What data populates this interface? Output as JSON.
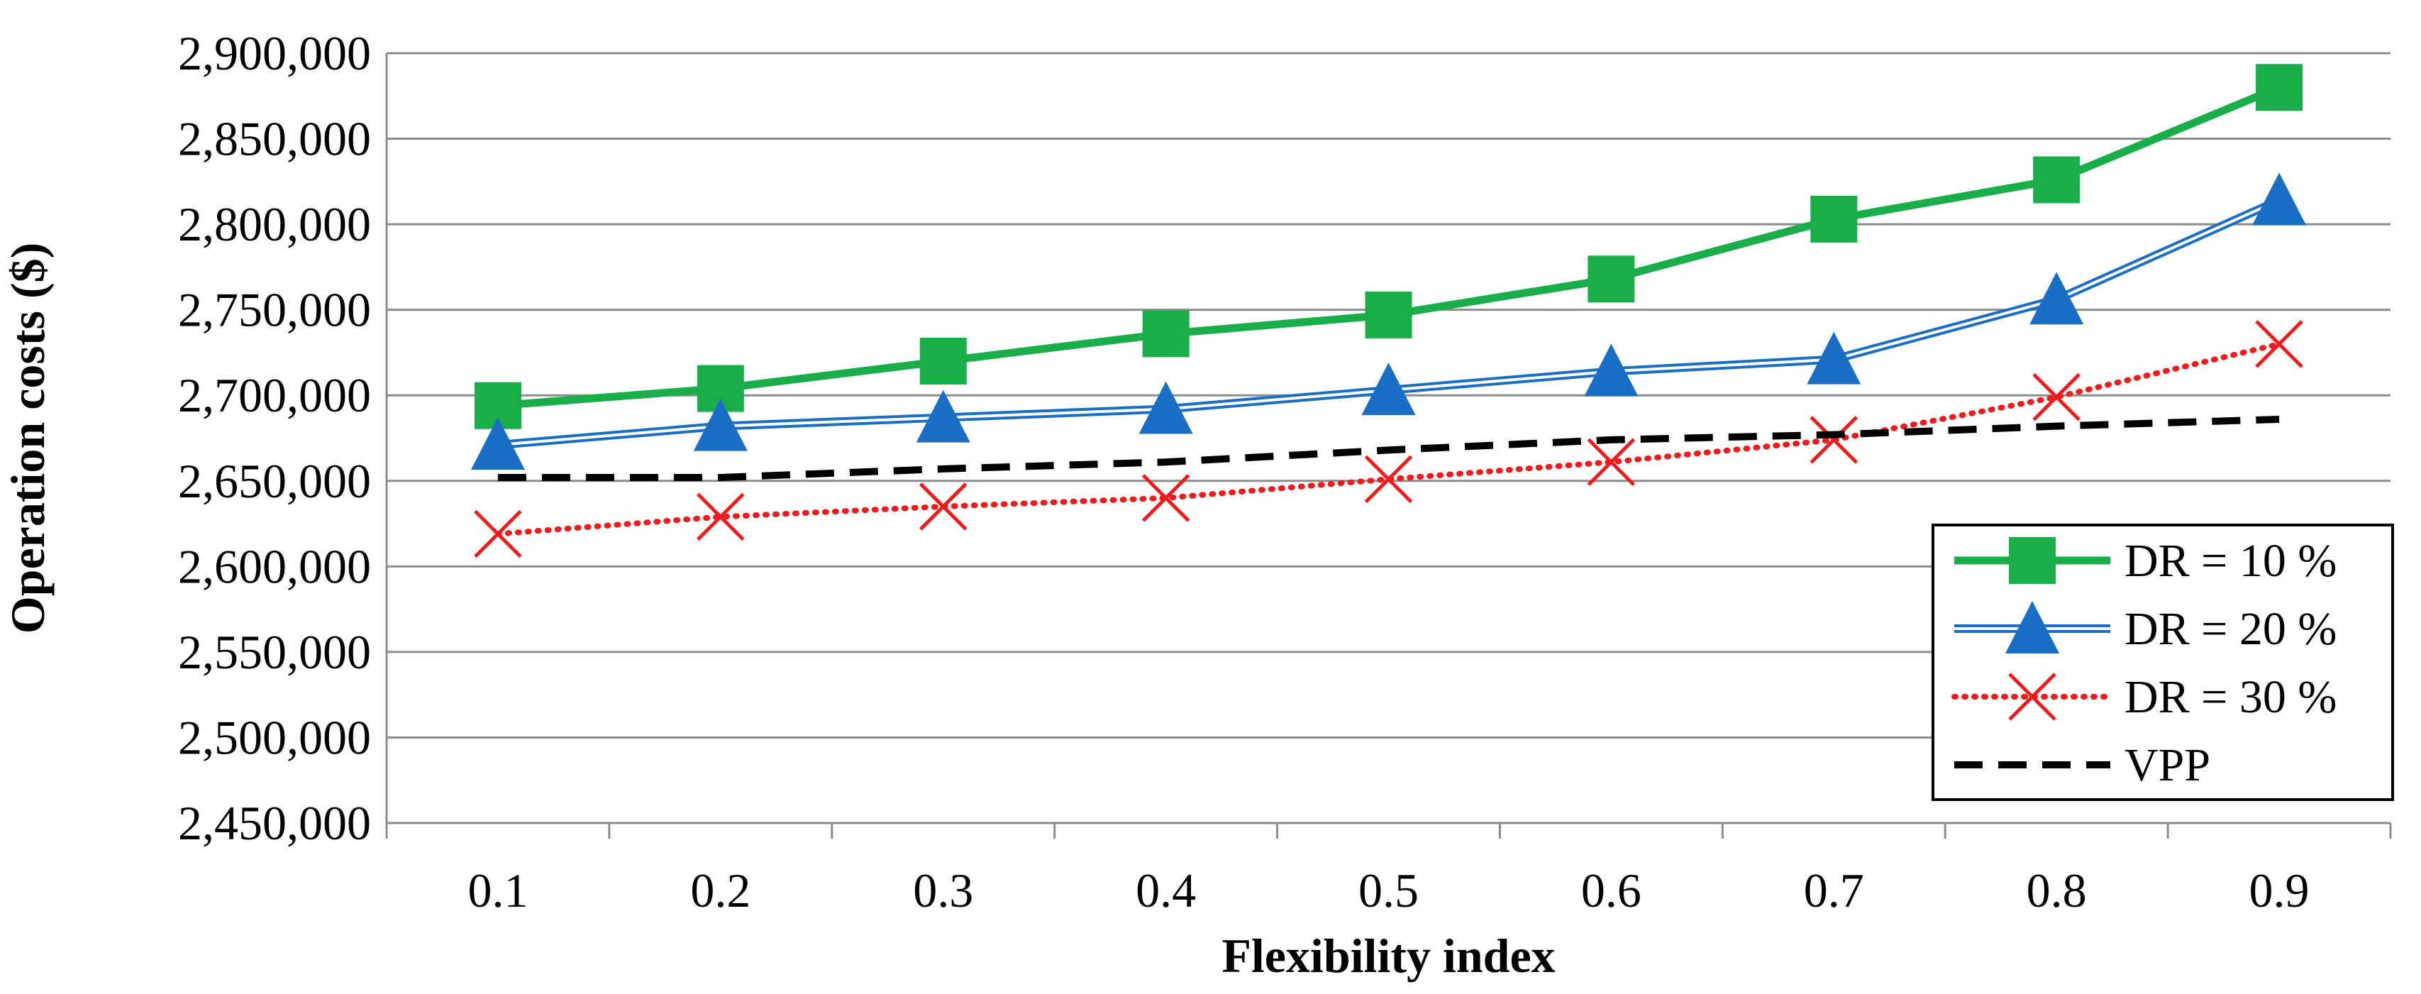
{
  "chart_data": {
    "type": "line",
    "title": "",
    "xlabel": "Flexibility index",
    "ylabel": "Operation costs ($)",
    "x": [
      "0.1",
      "0.2",
      "0.3",
      "0.4",
      "0.5",
      "0.6",
      "0.7",
      "0.8",
      "0.9"
    ],
    "ylim": [
      2450000,
      2900000
    ],
    "yticks": [
      2450000,
      2500000,
      2550000,
      2600000,
      2650000,
      2700000,
      2750000,
      2800000,
      2850000,
      2900000
    ],
    "ytick_labels": [
      "2,450,000",
      "2,500,000",
      "2,550,000",
      "2,600,000",
      "2,650,000",
      "2,700,000",
      "2,750,000",
      "2,800,000",
      "2,850,000",
      "2,900,000"
    ],
    "grid": true,
    "legend_position": "right",
    "series": [
      {
        "name": "DR = 10 %",
        "color": "#1aae4a",
        "marker": "square",
        "style": "solid",
        "values": [
          2694000,
          2704000,
          2720000,
          2736000,
          2747000,
          2768000,
          2803000,
          2826000,
          2880000
        ]
      },
      {
        "name": "DR = 20 %",
        "color": "#1a6fc4",
        "marker": "triangle",
        "style": "double",
        "values": [
          2671000,
          2682000,
          2687000,
          2692000,
          2703000,
          2714000,
          2721000,
          2756000,
          2814000
        ]
      },
      {
        "name": "DR = 30 %",
        "color": "#ee1c1c",
        "marker": "x",
        "style": "dotted",
        "values": [
          2619000,
          2629000,
          2635000,
          2640000,
          2651000,
          2661000,
          2674000,
          2699000,
          2730000
        ]
      },
      {
        "name": "VPP",
        "color": "#000000",
        "marker": "none",
        "style": "dashed",
        "values": [
          2652000,
          2652000,
          2657000,
          2661000,
          2668000,
          2674000,
          2677000,
          2682000,
          2686000
        ]
      }
    ]
  }
}
